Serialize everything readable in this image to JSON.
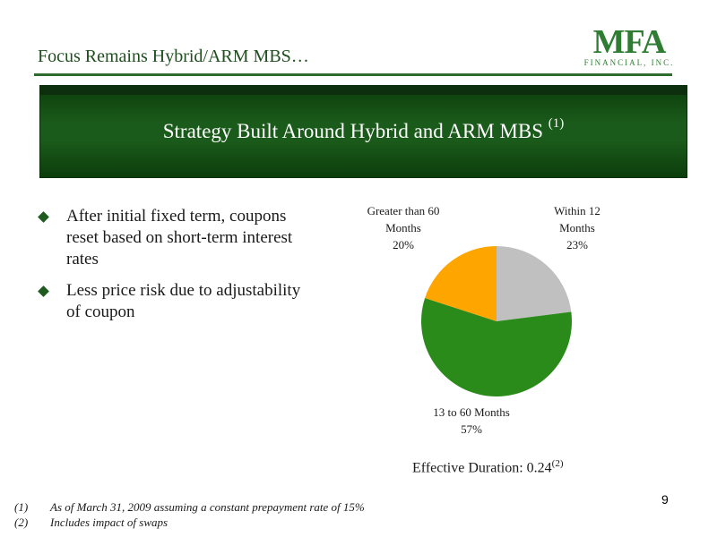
{
  "header": {
    "title": "Focus Remains Hybrid/ARM MBS…"
  },
  "logo": {
    "mark": "MFA",
    "subtitle": "FINANCIAL, INC."
  },
  "banner": {
    "title": "Strategy Built Around Hybrid and ARM MBS",
    "footnote_ref": "(1)"
  },
  "bullets": [
    "After initial fixed term, coupons reset based on short-term interest rates",
    "Less price risk due to adjustability of coupon"
  ],
  "chart_data": {
    "type": "pie",
    "slices": [
      {
        "label_lines": [
          "Within 12",
          "Months",
          "23%"
        ],
        "value": 23,
        "color": "#c0c0c0"
      },
      {
        "label_lines": [
          "13 to 60 Months",
          "57%"
        ],
        "value": 57,
        "color": "#2a8a1a"
      },
      {
        "label_lines": [
          "Greater than 60",
          "Months",
          "20%"
        ],
        "value": 20,
        "color": "#ffa500"
      }
    ]
  },
  "duration": {
    "text": "Effective Duration: 0.24",
    "footnote_ref": "(2)"
  },
  "footnotes": [
    {
      "num": "(1)",
      "text": "As of March 31, 2009  assuming a constant prepayment rate of 15%"
    },
    {
      "num": "(2)",
      "text": "Includes impact of swaps"
    }
  ],
  "page_number": "9"
}
